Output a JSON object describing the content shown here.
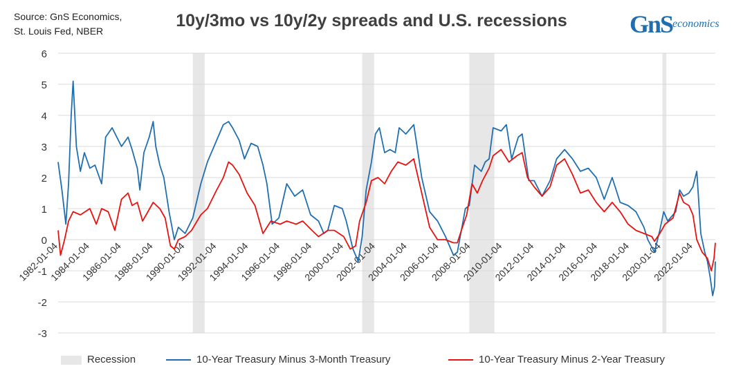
{
  "header": {
    "source_line1": "Source: GnS Economics,",
    "source_line2": "St. Louis Fed, NBER",
    "title": "10y/3mo vs 10y/2y spreads and U.S. recessions",
    "logo_main": "GnS",
    "logo_sub": "economics"
  },
  "colors": {
    "series_10y3m": "#1f6fb0",
    "series_10y2y": "#e8120f",
    "recession": "#e7e7e7",
    "grid": "#d9d9d9"
  },
  "chart_data": {
    "type": "line",
    "title": "10y/3mo vs 10y/2y spreads and U.S. recessions",
    "xlabel": "",
    "ylabel": "",
    "xlim": [
      "1982-01-04",
      "2023-06-01"
    ],
    "ylim": [
      -3,
      6
    ],
    "y_ticks": [
      -3,
      -2,
      -1,
      0,
      1,
      2,
      3,
      4,
      5,
      6
    ],
    "x_tick_labels": [
      "1982-01-04",
      "1984-01-04",
      "1986-01-04",
      "1988-01-04",
      "1990-01-04",
      "1992-01-04",
      "1994-01-04",
      "1996-01-04",
      "1998-01-04",
      "2000-01-04",
      "2002-01-04",
      "2004-01-04",
      "2006-01-04",
      "2008-01-04",
      "2010-01-04",
      "2012-01-04",
      "2014-01-04",
      "2016-01-04",
      "2018-01-04",
      "2020-01-04",
      "2022-01-04"
    ],
    "grid": "horizontal",
    "legend_position": "bottom",
    "recessions": [
      {
        "start": "1990-07-01",
        "end": "1991-03-31"
      },
      {
        "start": "2001-03-01",
        "end": "2001-11-30"
      },
      {
        "start": "2007-12-01",
        "end": "2009-06-30"
      },
      {
        "start": "2020-02-01",
        "end": "2020-04-30"
      }
    ],
    "series": [
      {
        "name": "10-Year Treasury Minus 3-Month Treasury",
        "points": [
          [
            "1982-01-04",
            2.5
          ],
          [
            "1982-04-01",
            1.6
          ],
          [
            "1982-07-01",
            0.5
          ],
          [
            "1982-09-01",
            1.8
          ],
          [
            "1982-11-01",
            4.0
          ],
          [
            "1982-12-15",
            5.1
          ],
          [
            "1983-03-01",
            3.0
          ],
          [
            "1983-06-01",
            2.2
          ],
          [
            "1983-09-01",
            2.8
          ],
          [
            "1984-01-04",
            2.3
          ],
          [
            "1984-05-01",
            2.4
          ],
          [
            "1984-10-01",
            1.8
          ],
          [
            "1985-01-01",
            3.3
          ],
          [
            "1985-06-01",
            3.6
          ],
          [
            "1986-01-01",
            3.0
          ],
          [
            "1986-06-01",
            3.3
          ],
          [
            "1986-09-01",
            2.9
          ],
          [
            "1987-01-01",
            2.3
          ],
          [
            "1987-03-01",
            1.6
          ],
          [
            "1987-06-01",
            2.8
          ],
          [
            "1987-10-01",
            3.3
          ],
          [
            "1988-01-01",
            3.8
          ],
          [
            "1988-03-01",
            3.0
          ],
          [
            "1988-06-01",
            2.4
          ],
          [
            "1988-09-01",
            2.0
          ],
          [
            "1989-01-01",
            0.9
          ],
          [
            "1989-05-01",
            0.0
          ],
          [
            "1989-08-01",
            0.4
          ],
          [
            "1990-01-04",
            0.2
          ],
          [
            "1990-07-01",
            0.7
          ],
          [
            "1991-01-01",
            1.8
          ],
          [
            "1991-06-01",
            2.5
          ],
          [
            "1992-01-01",
            3.2
          ],
          [
            "1992-06-01",
            3.7
          ],
          [
            "1992-10-01",
            3.8
          ],
          [
            "1993-01-01",
            3.6
          ],
          [
            "1993-06-01",
            3.2
          ],
          [
            "1993-10-01",
            2.6
          ],
          [
            "1994-03-01",
            3.1
          ],
          [
            "1994-08-01",
            3.0
          ],
          [
            "1994-12-01",
            2.4
          ],
          [
            "1995-03-01",
            1.8
          ],
          [
            "1995-07-01",
            0.5
          ],
          [
            "1995-12-01",
            0.7
          ],
          [
            "1996-06-01",
            1.8
          ],
          [
            "1996-12-01",
            1.4
          ],
          [
            "1997-06-01",
            1.6
          ],
          [
            "1997-12-01",
            0.8
          ],
          [
            "1998-06-01",
            0.6
          ],
          [
            "1998-10-01",
            0.2
          ],
          [
            "1999-01-01",
            0.3
          ],
          [
            "1999-06-01",
            1.1
          ],
          [
            "1999-12-01",
            1.0
          ],
          [
            "2000-03-01",
            0.6
          ],
          [
            "2000-08-01",
            -0.3
          ],
          [
            "2000-12-01",
            -0.7
          ],
          [
            "2001-03-01",
            0.1
          ],
          [
            "2001-06-01",
            1.6
          ],
          [
            "2001-10-01",
            2.5
          ],
          [
            "2002-01-01",
            3.4
          ],
          [
            "2002-04-01",
            3.6
          ],
          [
            "2002-08-01",
            2.8
          ],
          [
            "2002-12-01",
            2.9
          ],
          [
            "2003-04-01",
            2.8
          ],
          [
            "2003-07-01",
            3.6
          ],
          [
            "2003-12-01",
            3.4
          ],
          [
            "2004-06-01",
            3.7
          ],
          [
            "2004-12-01",
            2.0
          ],
          [
            "2005-06-01",
            0.9
          ],
          [
            "2005-12-01",
            0.6
          ],
          [
            "2006-06-01",
            0.1
          ],
          [
            "2006-12-01",
            -0.5
          ],
          [
            "2007-03-01",
            -0.4
          ],
          [
            "2007-06-01",
            0.3
          ],
          [
            "2007-09-01",
            1.0
          ],
          [
            "2007-12-01",
            1.1
          ],
          [
            "2008-04-01",
            2.4
          ],
          [
            "2008-09-01",
            2.2
          ],
          [
            "2008-12-01",
            2.5
          ],
          [
            "2009-03-01",
            2.6
          ],
          [
            "2009-06-01",
            3.6
          ],
          [
            "2009-12-01",
            3.5
          ],
          [
            "2010-04-01",
            3.7
          ],
          [
            "2010-08-01",
            2.6
          ],
          [
            "2011-01-01",
            3.3
          ],
          [
            "2011-04-01",
            3.4
          ],
          [
            "2011-09-01",
            1.9
          ],
          [
            "2012-01-01",
            1.9
          ],
          [
            "2012-07-01",
            1.4
          ],
          [
            "2013-01-01",
            1.9
          ],
          [
            "2013-06-01",
            2.6
          ],
          [
            "2013-12-01",
            2.9
          ],
          [
            "2014-06-01",
            2.6
          ],
          [
            "2014-12-01",
            2.2
          ],
          [
            "2015-06-01",
            2.3
          ],
          [
            "2015-12-01",
            2.0
          ],
          [
            "2016-06-01",
            1.3
          ],
          [
            "2016-12-01",
            2.0
          ],
          [
            "2017-06-01",
            1.2
          ],
          [
            "2017-12-01",
            1.1
          ],
          [
            "2018-06-01",
            0.9
          ],
          [
            "2018-12-01",
            0.4
          ],
          [
            "2019-03-01",
            0.0
          ],
          [
            "2019-08-01",
            -0.4
          ],
          [
            "2019-12-01",
            0.3
          ],
          [
            "2020-03-01",
            0.9
          ],
          [
            "2020-06-01",
            0.6
          ],
          [
            "2020-12-01",
            0.9
          ],
          [
            "2021-03-01",
            1.6
          ],
          [
            "2021-06-01",
            1.4
          ],
          [
            "2021-10-01",
            1.5
          ],
          [
            "2022-01-01",
            1.7
          ],
          [
            "2022-04-01",
            2.2
          ],
          [
            "2022-07-01",
            0.2
          ],
          [
            "2022-10-01",
            -0.4
          ],
          [
            "2022-12-01",
            -0.7
          ],
          [
            "2023-02-01",
            -1.2
          ],
          [
            "2023-04-01",
            -1.8
          ],
          [
            "2023-05-15",
            -1.5
          ],
          [
            "2023-06-01",
            -0.7
          ]
        ]
      },
      {
        "name": "10-Year Treasury Minus 2-Year Treasury",
        "points": [
          [
            "1982-01-04",
            0.3
          ],
          [
            "1982-03-01",
            -0.5
          ],
          [
            "1982-06-01",
            0.0
          ],
          [
            "1982-09-01",
            0.6
          ],
          [
            "1982-12-15",
            0.9
          ],
          [
            "1983-06-01",
            0.8
          ],
          [
            "1984-01-04",
            1.0
          ],
          [
            "1984-06-01",
            0.5
          ],
          [
            "1984-10-01",
            1.0
          ],
          [
            "1985-03-01",
            0.9
          ],
          [
            "1985-08-01",
            0.3
          ],
          [
            "1986-01-01",
            1.3
          ],
          [
            "1986-06-01",
            1.5
          ],
          [
            "1986-09-01",
            1.1
          ],
          [
            "1987-01-01",
            1.2
          ],
          [
            "1987-05-01",
            0.6
          ],
          [
            "1987-09-01",
            0.9
          ],
          [
            "1988-01-01",
            1.2
          ],
          [
            "1988-06-01",
            1.0
          ],
          [
            "1988-10-01",
            0.7
          ],
          [
            "1989-02-01",
            -0.2
          ],
          [
            "1989-05-01",
            -0.3
          ],
          [
            "1989-08-01",
            0.0
          ],
          [
            "1990-01-04",
            0.1
          ],
          [
            "1990-06-01",
            0.3
          ],
          [
            "1991-01-01",
            0.8
          ],
          [
            "1991-06-01",
            1.0
          ],
          [
            "1992-01-01",
            1.6
          ],
          [
            "1992-06-01",
            2.0
          ],
          [
            "1992-10-01",
            2.5
          ],
          [
            "1993-01-01",
            2.4
          ],
          [
            "1993-06-01",
            2.1
          ],
          [
            "1993-12-01",
            1.5
          ],
          [
            "1994-06-01",
            1.1
          ],
          [
            "1994-12-01",
            0.2
          ],
          [
            "1995-06-01",
            0.6
          ],
          [
            "1996-01-01",
            0.5
          ],
          [
            "1996-06-01",
            0.6
          ],
          [
            "1997-01-01",
            0.5
          ],
          [
            "1997-06-01",
            0.6
          ],
          [
            "1998-01-01",
            0.3
          ],
          [
            "1998-06-01",
            0.1
          ],
          [
            "1999-01-01",
            0.3
          ],
          [
            "1999-06-01",
            0.3
          ],
          [
            "2000-01-01",
            0.1
          ],
          [
            "2000-06-01",
            -0.3
          ],
          [
            "2000-10-01",
            -0.2
          ],
          [
            "2001-01-01",
            0.6
          ],
          [
            "2001-06-01",
            1.2
          ],
          [
            "2001-10-01",
            1.9
          ],
          [
            "2002-03-01",
            2.0
          ],
          [
            "2002-08-01",
            1.8
          ],
          [
            "2003-01-01",
            2.2
          ],
          [
            "2003-06-01",
            2.5
          ],
          [
            "2003-12-01",
            2.4
          ],
          [
            "2004-06-01",
            2.6
          ],
          [
            "2004-12-01",
            1.5
          ],
          [
            "2005-06-01",
            0.4
          ],
          [
            "2005-12-01",
            0.0
          ],
          [
            "2006-06-01",
            0.0
          ],
          [
            "2006-12-01",
            -0.1
          ],
          [
            "2007-03-01",
            -0.1
          ],
          [
            "2007-06-01",
            0.3
          ],
          [
            "2007-10-01",
            0.8
          ],
          [
            "2008-02-01",
            1.8
          ],
          [
            "2008-06-01",
            1.5
          ],
          [
            "2008-10-01",
            1.9
          ],
          [
            "2009-03-01",
            2.3
          ],
          [
            "2009-06-01",
            2.7
          ],
          [
            "2009-12-01",
            2.9
          ],
          [
            "2010-06-01",
            2.5
          ],
          [
            "2010-12-01",
            2.7
          ],
          [
            "2011-04-01",
            2.8
          ],
          [
            "2011-08-01",
            2.0
          ],
          [
            "2012-01-01",
            1.7
          ],
          [
            "2012-07-01",
            1.4
          ],
          [
            "2013-01-01",
            1.7
          ],
          [
            "2013-06-01",
            2.4
          ],
          [
            "2013-12-01",
            2.6
          ],
          [
            "2014-06-01",
            2.1
          ],
          [
            "2014-12-01",
            1.5
          ],
          [
            "2015-06-01",
            1.6
          ],
          [
            "2015-12-01",
            1.2
          ],
          [
            "2016-06-01",
            0.9
          ],
          [
            "2016-12-01",
            1.2
          ],
          [
            "2017-06-01",
            0.9
          ],
          [
            "2017-12-01",
            0.5
          ],
          [
            "2018-06-01",
            0.3
          ],
          [
            "2018-12-01",
            0.2
          ],
          [
            "2019-06-01",
            0.1
          ],
          [
            "2019-08-01",
            -0.05
          ],
          [
            "2019-12-01",
            0.2
          ],
          [
            "2020-04-01",
            0.5
          ],
          [
            "2020-10-01",
            0.7
          ],
          [
            "2021-03-01",
            1.5
          ],
          [
            "2021-06-01",
            1.2
          ],
          [
            "2021-10-01",
            1.1
          ],
          [
            "2022-01-01",
            0.8
          ],
          [
            "2022-04-01",
            0.0
          ],
          [
            "2022-08-01",
            -0.4
          ],
          [
            "2022-12-01",
            -0.6
          ],
          [
            "2023-03-01",
            -1.0
          ],
          [
            "2023-05-01",
            -0.6
          ],
          [
            "2023-06-01",
            -0.1
          ]
        ]
      }
    ]
  },
  "legend": {
    "recession_label": "Recession",
    "series1_label": "10-Year Treasury Minus 3-Month Treasury",
    "series2_label": "10-Year Treasury Minus 2-Year Treasury"
  }
}
